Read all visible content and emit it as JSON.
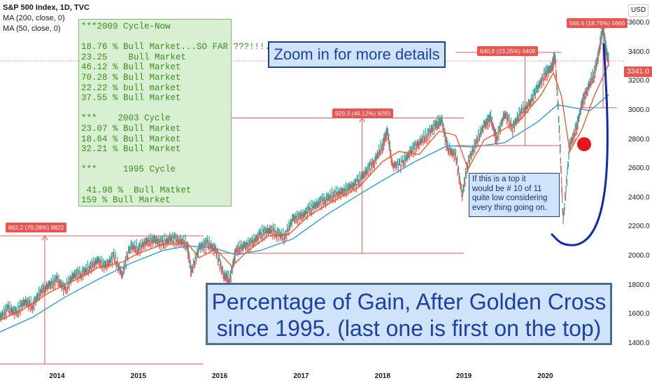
{
  "header": {
    "title": "S&P 500 Index, 1D, TVC",
    "ma200": "MA (200, close, 0)",
    "ma50": "MA (50, close, 0)",
    "currency": "USD"
  },
  "annotations": {
    "green_box_lines": [
      "***2009 Cycle-Now",
      "",
      "18.76 % Bull Market...SO FAR ???!!!..!",
      "23.25    Bull Market",
      "46.12 % Bull Market",
      "70.28 % Bull Market",
      "22.22 % bull market",
      "37.55 % Bull Market",
      "",
      "***    2003 Cycle",
      "23.07 % Bull Market",
      "18.64 % Bull Market",
      "32.21 % Bull Market",
      "",
      "***     1995 Cycle",
      "",
      " 41.98 %  Bull Matket",
      "159 % Bull Market"
    ],
    "zoom_note": "Zoom in for more details",
    "big_note_lines": [
      "Percentage of Gain, After Golden Cross",
      "since 1995. (last one is first on the top)"
    ],
    "top_note_lines": [
      "If this is a top it",
      "would be # 10 of 11",
      "quite low considering",
      "every thing going on."
    ],
    "measure_labels": [
      "882.2 (70.28%) 8822",
      "929.3 (46.12%) 9293",
      "640.8 (23.25%) 6408",
      "566.6 (18.76%) 5666"
    ]
  },
  "colors": {
    "up": "#26a69a",
    "down": "#ef5350",
    "ma50": "#f4511e",
    "ma200": "#29a0d8",
    "measure": "#ef5350",
    "curve": "#0b2bb0",
    "dot": "#e8141b"
  },
  "chart_data": {
    "type": "line",
    "title": "S&P 500 Index, 1D, TVC",
    "xlabel": "",
    "ylabel": "",
    "x_ticks": [
      "2014",
      "2015",
      "2016",
      "2017",
      "2018",
      "2019",
      "2020"
    ],
    "y_ticks": [
      1400,
      1600,
      1800,
      2000,
      2200,
      2400,
      2600,
      2800,
      3000,
      3200,
      3400,
      3600
    ],
    "ylim": [
      1260,
      3760
    ],
    "xlim": [
      2013.3,
      2020.95
    ],
    "last_price": "3341.0",
    "series": [
      {
        "name": "S&P 500",
        "points": [
          [
            2013.3,
            1580
          ],
          [
            2013.4,
            1640
          ],
          [
            2013.5,
            1610
          ],
          [
            2013.6,
            1690
          ],
          [
            2013.7,
            1660
          ],
          [
            2013.8,
            1760
          ],
          [
            2013.9,
            1800
          ],
          [
            2014.0,
            1840
          ],
          [
            2014.1,
            1770
          ],
          [
            2014.2,
            1870
          ],
          [
            2014.3,
            1880
          ],
          [
            2014.4,
            1920
          ],
          [
            2014.5,
            1970
          ],
          [
            2014.6,
            1930
          ],
          [
            2014.7,
            2000
          ],
          [
            2014.8,
            1870
          ],
          [
            2014.9,
            2070
          ],
          [
            2015.0,
            2050
          ],
          [
            2015.1,
            2100
          ],
          [
            2015.2,
            2110
          ],
          [
            2015.3,
            2090
          ],
          [
            2015.4,
            2120
          ],
          [
            2015.5,
            2110
          ],
          [
            2015.6,
            2080
          ],
          [
            2015.65,
            1890
          ],
          [
            2015.75,
            2060
          ],
          [
            2015.85,
            2090
          ],
          [
            2015.95,
            2040
          ],
          [
            2016.05,
            1870
          ],
          [
            2016.12,
            1830
          ],
          [
            2016.2,
            2040
          ],
          [
            2016.3,
            2070
          ],
          [
            2016.4,
            2090
          ],
          [
            2016.5,
            2150
          ],
          [
            2016.6,
            2180
          ],
          [
            2016.7,
            2160
          ],
          [
            2016.8,
            2130
          ],
          [
            2016.9,
            2260
          ],
          [
            2017.0,
            2270
          ],
          [
            2017.1,
            2320
          ],
          [
            2017.2,
            2360
          ],
          [
            2017.3,
            2390
          ],
          [
            2017.4,
            2420
          ],
          [
            2017.5,
            2440
          ],
          [
            2017.6,
            2470
          ],
          [
            2017.7,
            2510
          ],
          [
            2017.8,
            2580
          ],
          [
            2017.9,
            2650
          ],
          [
            2018.0,
            2760
          ],
          [
            2018.06,
            2860
          ],
          [
            2018.12,
            2620
          ],
          [
            2018.25,
            2640
          ],
          [
            2018.35,
            2720
          ],
          [
            2018.45,
            2780
          ],
          [
            2018.55,
            2830
          ],
          [
            2018.65,
            2900
          ],
          [
            2018.73,
            2930
          ],
          [
            2018.8,
            2740
          ],
          [
            2018.9,
            2690
          ],
          [
            2018.98,
            2420
          ],
          [
            2019.05,
            2640
          ],
          [
            2019.15,
            2780
          ],
          [
            2019.25,
            2900
          ],
          [
            2019.33,
            2950
          ],
          [
            2019.4,
            2800
          ],
          [
            2019.5,
            2980
          ],
          [
            2019.6,
            2880
          ],
          [
            2019.7,
            2990
          ],
          [
            2019.8,
            3040
          ],
          [
            2019.9,
            3150
          ],
          [
            2020.0,
            3250
          ],
          [
            2020.08,
            3300
          ],
          [
            2020.12,
            3380
          ],
          [
            2020.17,
            2900
          ],
          [
            2020.22,
            2240
          ],
          [
            2020.3,
            2760
          ],
          [
            2020.38,
            2870
          ],
          [
            2020.45,
            3050
          ],
          [
            2020.52,
            3150
          ],
          [
            2020.6,
            3250
          ],
          [
            2020.66,
            3400
          ],
          [
            2020.71,
            3580
          ],
          [
            2020.75,
            3400
          ],
          [
            2020.78,
            3341
          ]
        ]
      },
      {
        "name": "MA (50, close, 0)",
        "points": [
          [
            2013.3,
            1560
          ],
          [
            2013.6,
            1640
          ],
          [
            2013.9,
            1750
          ],
          [
            2014.2,
            1830
          ],
          [
            2014.5,
            1920
          ],
          [
            2014.8,
            1960
          ],
          [
            2015.0,
            2020
          ],
          [
            2015.3,
            2080
          ],
          [
            2015.6,
            2090
          ],
          [
            2015.75,
            1990
          ],
          [
            2015.95,
            2050
          ],
          [
            2016.15,
            1930
          ],
          [
            2016.35,
            2040
          ],
          [
            2016.6,
            2140
          ],
          [
            2016.85,
            2150
          ],
          [
            2017.1,
            2280
          ],
          [
            2017.4,
            2380
          ],
          [
            2017.7,
            2470
          ],
          [
            2018.0,
            2650
          ],
          [
            2018.2,
            2720
          ],
          [
            2018.45,
            2700
          ],
          [
            2018.7,
            2860
          ],
          [
            2018.9,
            2830
          ],
          [
            2019.05,
            2600
          ],
          [
            2019.25,
            2800
          ],
          [
            2019.45,
            2860
          ],
          [
            2019.7,
            2940
          ],
          [
            2019.95,
            3110
          ],
          [
            2020.1,
            3260
          ],
          [
            2020.2,
            3100
          ],
          [
            2020.3,
            2720
          ],
          [
            2020.45,
            2870
          ],
          [
            2020.6,
            3100
          ],
          [
            2020.78,
            3320
          ]
        ]
      },
      {
        "name": "MA (200, close, 0)",
        "points": [
          [
            2013.3,
            1480
          ],
          [
            2013.7,
            1580
          ],
          [
            2014.1,
            1720
          ],
          [
            2014.5,
            1840
          ],
          [
            2014.9,
            1950
          ],
          [
            2015.3,
            2040
          ],
          [
            2015.6,
            2070
          ],
          [
            2015.9,
            2060
          ],
          [
            2016.2,
            2010
          ],
          [
            2016.5,
            2040
          ],
          [
            2016.9,
            2120
          ],
          [
            2017.3,
            2280
          ],
          [
            2017.7,
            2420
          ],
          [
            2018.0,
            2520
          ],
          [
            2018.4,
            2650
          ],
          [
            2018.8,
            2760
          ],
          [
            2019.1,
            2750
          ],
          [
            2019.5,
            2780
          ],
          [
            2019.9,
            2920
          ],
          [
            2020.15,
            3040
          ],
          [
            2020.35,
            3020
          ],
          [
            2020.55,
            3000
          ],
          [
            2020.78,
            3110
          ]
        ]
      }
    ],
    "measurements": [
      {
        "label": "882.2 (70.28%) 8822",
        "x_start": 2013.3,
        "x_end": 2015.8,
        "x_arrow": 2013.85,
        "y_low": 1260,
        "y_high": 2140
      },
      {
        "label": "929.3 (46.12%) 9293",
        "x_start": 2015.8,
        "x_end": 2019.0,
        "x_arrow": 2017.75,
        "y_low": 2020,
        "y_high": 2950
      },
      {
        "label": "640.8 (23.25%) 6408",
        "x_start": 2018.9,
        "x_end": 2020.2,
        "x_arrow": 2019.75,
        "y_low": 2760,
        "y_high": 3400
      },
      {
        "label": "566.6 (18.76%) 5666",
        "x_start": 2020.45,
        "x_end": 2020.88,
        "x_arrow": 2020.71,
        "y_low": 3020,
        "y_high": 3590
      }
    ],
    "grid": false,
    "legend": "top-left"
  }
}
